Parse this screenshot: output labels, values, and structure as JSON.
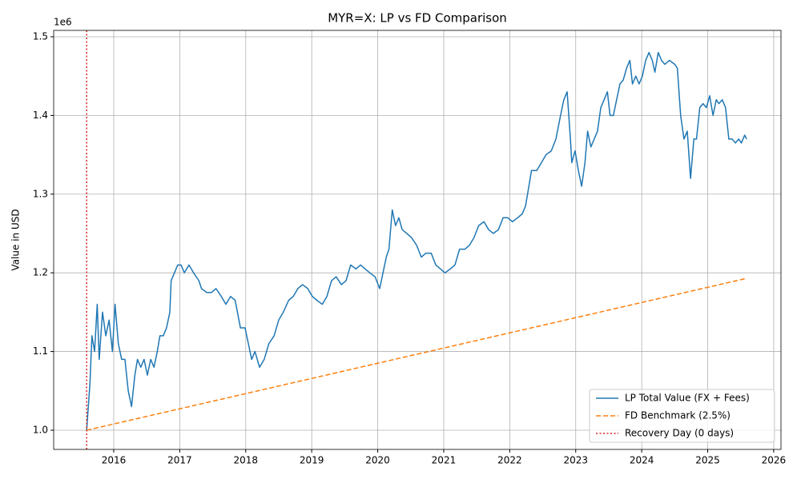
{
  "chart_data": {
    "type": "line",
    "title": "MYR=X: LP vs FD Comparison",
    "y_label": "Value in USD",
    "y_offset_text": "1e6",
    "xlim": [
      2015.09,
      2026.11
    ],
    "ylim": [
      0.9756,
      1.5081
    ],
    "xticks": [
      2016,
      2017,
      2018,
      2019,
      2020,
      2021,
      2022,
      2023,
      2024,
      2025,
      2026
    ],
    "yticks": [
      {
        "value": 1.0,
        "label": "1.0"
      },
      1.1,
      1.2,
      1.3,
      1.4,
      1.5
    ],
    "grid": true,
    "legend_position": "lower-right",
    "series": [
      {
        "name": "LP Total Value (FX + Fees)",
        "color": "#1f77b4",
        "style": "solid",
        "x": [
          2015.59,
          2015.64,
          2015.67,
          2015.71,
          2015.75,
          2015.78,
          2015.83,
          2015.88,
          2015.93,
          2015.98,
          2016.02,
          2016.07,
          2016.12,
          2016.17,
          2016.22,
          2016.27,
          2016.32,
          2016.36,
          2016.41,
          2016.46,
          2016.51,
          2016.56,
          2016.61,
          2016.66,
          2016.7,
          2016.75,
          2016.8,
          2016.85,
          2016.87,
          2016.92,
          2016.97,
          2017.02,
          2017.07,
          2017.14,
          2017.21,
          2017.29,
          2017.33,
          2017.41,
          2017.48,
          2017.55,
          2017.63,
          2017.7,
          2017.77,
          2017.84,
          2017.92,
          2017.99,
          2018.04,
          2018.09,
          2018.14,
          2018.21,
          2018.28,
          2018.35,
          2018.43,
          2018.5,
          2018.57,
          2018.65,
          2018.72,
          2018.79,
          2018.86,
          2018.94,
          2019.01,
          2019.08,
          2019.16,
          2019.23,
          2019.3,
          2019.37,
          2019.45,
          2019.52,
          2019.59,
          2019.67,
          2019.74,
          2019.81,
          2019.88,
          2019.96,
          2020.03,
          2020.08,
          2020.13,
          2020.17,
          2020.22,
          2020.27,
          2020.32,
          2020.37,
          2020.44,
          2020.51,
          2020.59,
          2020.66,
          2020.73,
          2020.81,
          2020.88,
          2020.95,
          2021.02,
          2021.1,
          2021.17,
          2021.24,
          2021.32,
          2021.39,
          2021.46,
          2021.53,
          2021.61,
          2021.68,
          2021.75,
          2021.83,
          2021.9,
          2021.97,
          2022.04,
          2022.12,
          2022.19,
          2022.24,
          2022.29,
          2022.33,
          2022.41,
          2022.48,
          2022.55,
          2022.63,
          2022.7,
          2022.77,
          2022.82,
          2022.87,
          2022.92,
          2022.94,
          2022.99,
          2023.04,
          2023.09,
          2023.14,
          2023.18,
          2023.23,
          2023.28,
          2023.33,
          2023.38,
          2023.43,
          2023.48,
          2023.52,
          2023.57,
          2023.62,
          2023.67,
          2023.72,
          2023.77,
          2023.82,
          2023.86,
          2023.91,
          2023.96,
          2024.01,
          2024.06,
          2024.11,
          2024.16,
          2024.2,
          2024.25,
          2024.3,
          2024.35,
          2024.42,
          2024.5,
          2024.54,
          2024.59,
          2024.64,
          2024.69,
          2024.74,
          2024.79,
          2024.83,
          2024.88,
          2024.93,
          2024.98,
          2025.03,
          2025.08,
          2025.13,
          2025.17,
          2025.22,
          2025.27,
          2025.32,
          2025.37,
          2025.42,
          2025.47,
          2025.51,
          2025.56,
          2025.59
        ],
        "values": [
          1.0,
          1.06,
          1.12,
          1.1,
          1.16,
          1.09,
          1.15,
          1.12,
          1.14,
          1.1,
          1.16,
          1.11,
          1.09,
          1.09,
          1.05,
          1.03,
          1.07,
          1.09,
          1.08,
          1.09,
          1.07,
          1.09,
          1.08,
          1.1,
          1.12,
          1.12,
          1.13,
          1.15,
          1.19,
          1.2,
          1.21,
          1.21,
          1.2,
          1.21,
          1.2,
          1.19,
          1.18,
          1.175,
          1.175,
          1.18,
          1.17,
          1.16,
          1.17,
          1.165,
          1.13,
          1.13,
          1.11,
          1.09,
          1.1,
          1.08,
          1.09,
          1.11,
          1.12,
          1.14,
          1.15,
          1.165,
          1.17,
          1.18,
          1.185,
          1.18,
          1.17,
          1.165,
          1.16,
          1.17,
          1.19,
          1.195,
          1.185,
          1.19,
          1.21,
          1.205,
          1.21,
          1.205,
          1.2,
          1.195,
          1.18,
          1.2,
          1.22,
          1.23,
          1.28,
          1.26,
          1.27,
          1.255,
          1.25,
          1.245,
          1.235,
          1.22,
          1.225,
          1.225,
          1.21,
          1.205,
          1.2,
          1.205,
          1.21,
          1.23,
          1.23,
          1.235,
          1.245,
          1.26,
          1.265,
          1.255,
          1.25,
          1.255,
          1.27,
          1.27,
          1.265,
          1.27,
          1.275,
          1.285,
          1.31,
          1.33,
          1.33,
          1.34,
          1.35,
          1.355,
          1.37,
          1.4,
          1.42,
          1.43,
          1.37,
          1.34,
          1.355,
          1.33,
          1.31,
          1.34,
          1.38,
          1.36,
          1.37,
          1.38,
          1.41,
          1.42,
          1.43,
          1.4,
          1.4,
          1.42,
          1.44,
          1.445,
          1.46,
          1.47,
          1.44,
          1.45,
          1.44,
          1.45,
          1.47,
          1.48,
          1.47,
          1.455,
          1.48,
          1.47,
          1.465,
          1.47,
          1.465,
          1.46,
          1.4,
          1.37,
          1.38,
          1.32,
          1.37,
          1.37,
          1.41,
          1.415,
          1.41,
          1.425,
          1.4,
          1.42,
          1.415,
          1.42,
          1.41,
          1.37,
          1.37,
          1.365,
          1.37,
          1.365,
          1.375,
          1.37
        ]
      },
      {
        "name": "FD Benchmark (2.5%)",
        "color": "#ff7f0e",
        "style": "dashed",
        "x": [
          2015.59,
          2025.59
        ],
        "values": [
          1.0,
          1.193
        ]
      }
    ],
    "vlines": [
      {
        "name": "Recovery Day (0 days)",
        "color": "#d62728",
        "style": "dotted",
        "x": 2015.59
      }
    ]
  }
}
